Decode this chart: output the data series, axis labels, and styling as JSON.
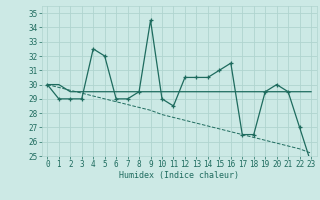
{
  "title": "",
  "xlabel": "Humidex (Indice chaleur)",
  "bg_color": "#cce9e5",
  "grid_color": "#b0d4cf",
  "line_color": "#1e6b5e",
  "x_values": [
    0,
    1,
    2,
    3,
    4,
    5,
    6,
    7,
    8,
    9,
    10,
    11,
    12,
    13,
    14,
    15,
    16,
    17,
    18,
    19,
    20,
    21,
    22,
    23
  ],
  "y_main": [
    30,
    29,
    29,
    29,
    32.5,
    32,
    29,
    29,
    29.5,
    34.5,
    29,
    28.5,
    30.5,
    30.5,
    30.5,
    31,
    31.5,
    26.5,
    26.5,
    29.5,
    30,
    29.5,
    27,
    24.5
  ],
  "y_flat": [
    30,
    30,
    29.5,
    29.5,
    29.5,
    29.5,
    29.5,
    29.5,
    29.5,
    29.5,
    29.5,
    29.5,
    29.5,
    29.5,
    29.5,
    29.5,
    29.5,
    29.5,
    29.5,
    29.5,
    29.5,
    29.5,
    29.5,
    29.5
  ],
  "y_trend": [
    30,
    29.8,
    29.6,
    29.4,
    29.2,
    29.0,
    28.8,
    28.6,
    28.4,
    28.2,
    27.9,
    27.7,
    27.5,
    27.3,
    27.1,
    26.9,
    26.7,
    26.5,
    26.3,
    26.1,
    25.9,
    25.7,
    25.5,
    25.2
  ],
  "ylim": [
    25,
    35.5
  ],
  "yticks": [
    25,
    26,
    27,
    28,
    29,
    30,
    31,
    32,
    33,
    34,
    35
  ],
  "xlim": [
    -0.5,
    23.5
  ],
  "xticks": [
    0,
    1,
    2,
    3,
    4,
    5,
    6,
    7,
    8,
    9,
    10,
    11,
    12,
    13,
    14,
    15,
    16,
    17,
    18,
    19,
    20,
    21,
    22,
    23
  ]
}
